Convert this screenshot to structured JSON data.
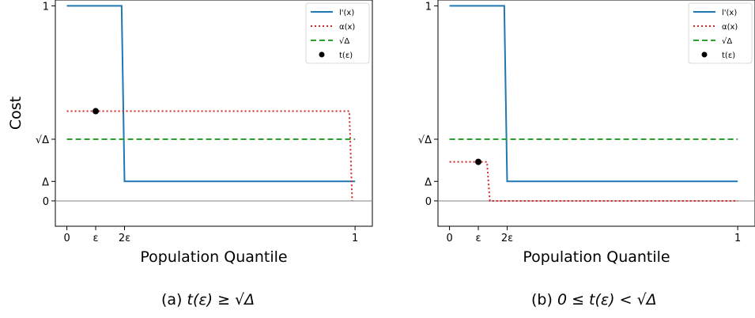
{
  "figure": {
    "ylabel_shared": "Cost",
    "captions": {
      "a": {
        "prefix": "(a) ",
        "expr": "t(ε) ≥ √Δ"
      },
      "b": {
        "prefix": "(b) ",
        "expr": "0 ≤ t(ε) < √Δ"
      }
    }
  },
  "chart_data": [
    {
      "type": "line",
      "xlabel": "Population Quantile",
      "ylabel": "Cost",
      "xlim": [
        -0.04,
        1.06
      ],
      "ylim": [
        -0.13,
        1.03
      ],
      "x_ticks": [
        {
          "v": 0,
          "label": "0"
        },
        {
          "v": 0.1,
          "label": "ε"
        },
        {
          "v": 0.2,
          "label": "2ε"
        },
        {
          "v": 1,
          "label": "1"
        }
      ],
      "y_ticks": [
        {
          "v": 0,
          "label": "0"
        },
        {
          "v": 0.1,
          "label": "Δ"
        },
        {
          "v": 0.3162,
          "label": "√Δ"
        },
        {
          "v": 1,
          "label": "1"
        }
      ],
      "zero_line": true,
      "legend_position": "top-right",
      "series": [
        {
          "name": "l'(x)",
          "style": "solid",
          "color": "#1f77b4",
          "x": [
            0,
            0.19,
            0.2,
            1
          ],
          "y": [
            1,
            1,
            0.1,
            0.1
          ]
        },
        {
          "name": "α(x)",
          "style": "dotted",
          "color": "#d62728",
          "x": [
            0,
            0.98,
            0.99
          ],
          "y": [
            0.46,
            0.46,
            0
          ]
        },
        {
          "name": "√Δ",
          "style": "dashed",
          "color": "#2ca02c",
          "x": [
            0,
            1
          ],
          "y": [
            0.3162,
            0.3162
          ]
        }
      ],
      "points": [
        {
          "name": "t(ε)",
          "color": "#000000",
          "x": 0.1,
          "y": 0.46
        }
      ]
    },
    {
      "type": "line",
      "xlabel": "Population Quantile",
      "ylabel": "",
      "xlim": [
        -0.04,
        1.06
      ],
      "ylim": [
        -0.13,
        1.03
      ],
      "x_ticks": [
        {
          "v": 0,
          "label": "0"
        },
        {
          "v": 0.1,
          "label": "ε"
        },
        {
          "v": 0.2,
          "label": "2ε"
        },
        {
          "v": 1,
          "label": "1"
        }
      ],
      "y_ticks": [
        {
          "v": 0,
          "label": "0"
        },
        {
          "v": 0.1,
          "label": "Δ"
        },
        {
          "v": 0.3162,
          "label": "√Δ"
        },
        {
          "v": 1,
          "label": "1"
        }
      ],
      "zero_line": true,
      "legend_position": "top-right",
      "series": [
        {
          "name": "l'(x)",
          "style": "solid",
          "color": "#1f77b4",
          "x": [
            0,
            0.19,
            0.2,
            1
          ],
          "y": [
            1,
            1,
            0.1,
            0.1
          ]
        },
        {
          "name": "α(x)",
          "style": "dotted",
          "color": "#d62728",
          "x": [
            0,
            0.13,
            0.14,
            1
          ],
          "y": [
            0.2,
            0.2,
            0,
            0
          ]
        },
        {
          "name": "√Δ",
          "style": "dashed",
          "color": "#2ca02c",
          "x": [
            0,
            1
          ],
          "y": [
            0.3162,
            0.3162
          ]
        }
      ],
      "points": [
        {
          "name": "t(ε)",
          "color": "#000000",
          "x": 0.1,
          "y": 0.2
        }
      ]
    }
  ]
}
